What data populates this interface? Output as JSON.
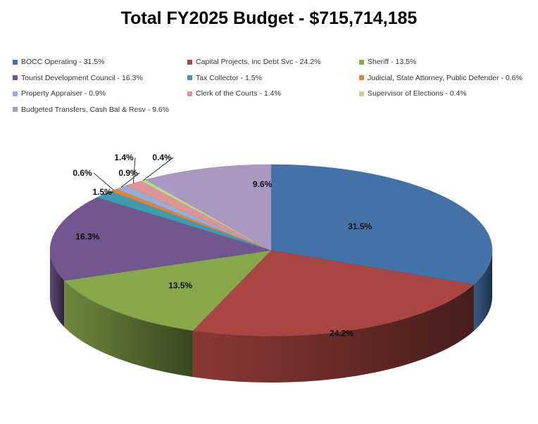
{
  "chart_data": {
    "type": "pie",
    "title": "Total FY2025 Budget - $715,714,185",
    "slices": [
      {
        "name": "BOCC Operating - 31.5%",
        "value": 31.5,
        "label": "31.5%",
        "color": "#4472a8"
      },
      {
        "name": "Capital Projects, inc Debt Svc - 24.2%",
        "value": 24.2,
        "label": "24.2%",
        "color": "#a94543"
      },
      {
        "name": "Sheriff - 13.5%",
        "value": 13.5,
        "label": "13.5%",
        "color": "#88a64a"
      },
      {
        "name": "Tourist Development Council - 16.3%",
        "value": 16.3,
        "label": "16.3%",
        "color": "#725690"
      },
      {
        "name": "Tax Collector - 1.5%",
        "value": 1.5,
        "label": "1.5%",
        "color": "#3e9bb0"
      },
      {
        "name": "Judicial, State Attorney, Public Defender - 0.6%",
        "value": 0.6,
        "label": "0.6%",
        "color": "#e08336"
      },
      {
        "name": "Property Appraiser - 0.9%",
        "value": 0.9,
        "label": "0.9%",
        "color": "#93aedb"
      },
      {
        "name": "Clerk of the Courts - 1.4%",
        "value": 1.4,
        "label": "1.4%",
        "color": "#dc9593"
      },
      {
        "name": "Supervisor of Elections - 0.4%",
        "value": 0.4,
        "label": "0.4%",
        "color": "#bcd592"
      },
      {
        "name": "Budgeted Transfers, Cash Bal & Resv - 9.6%",
        "value": 9.6,
        "label": "9.6%",
        "color": "#a998c2"
      }
    ],
    "legend": "top"
  }
}
